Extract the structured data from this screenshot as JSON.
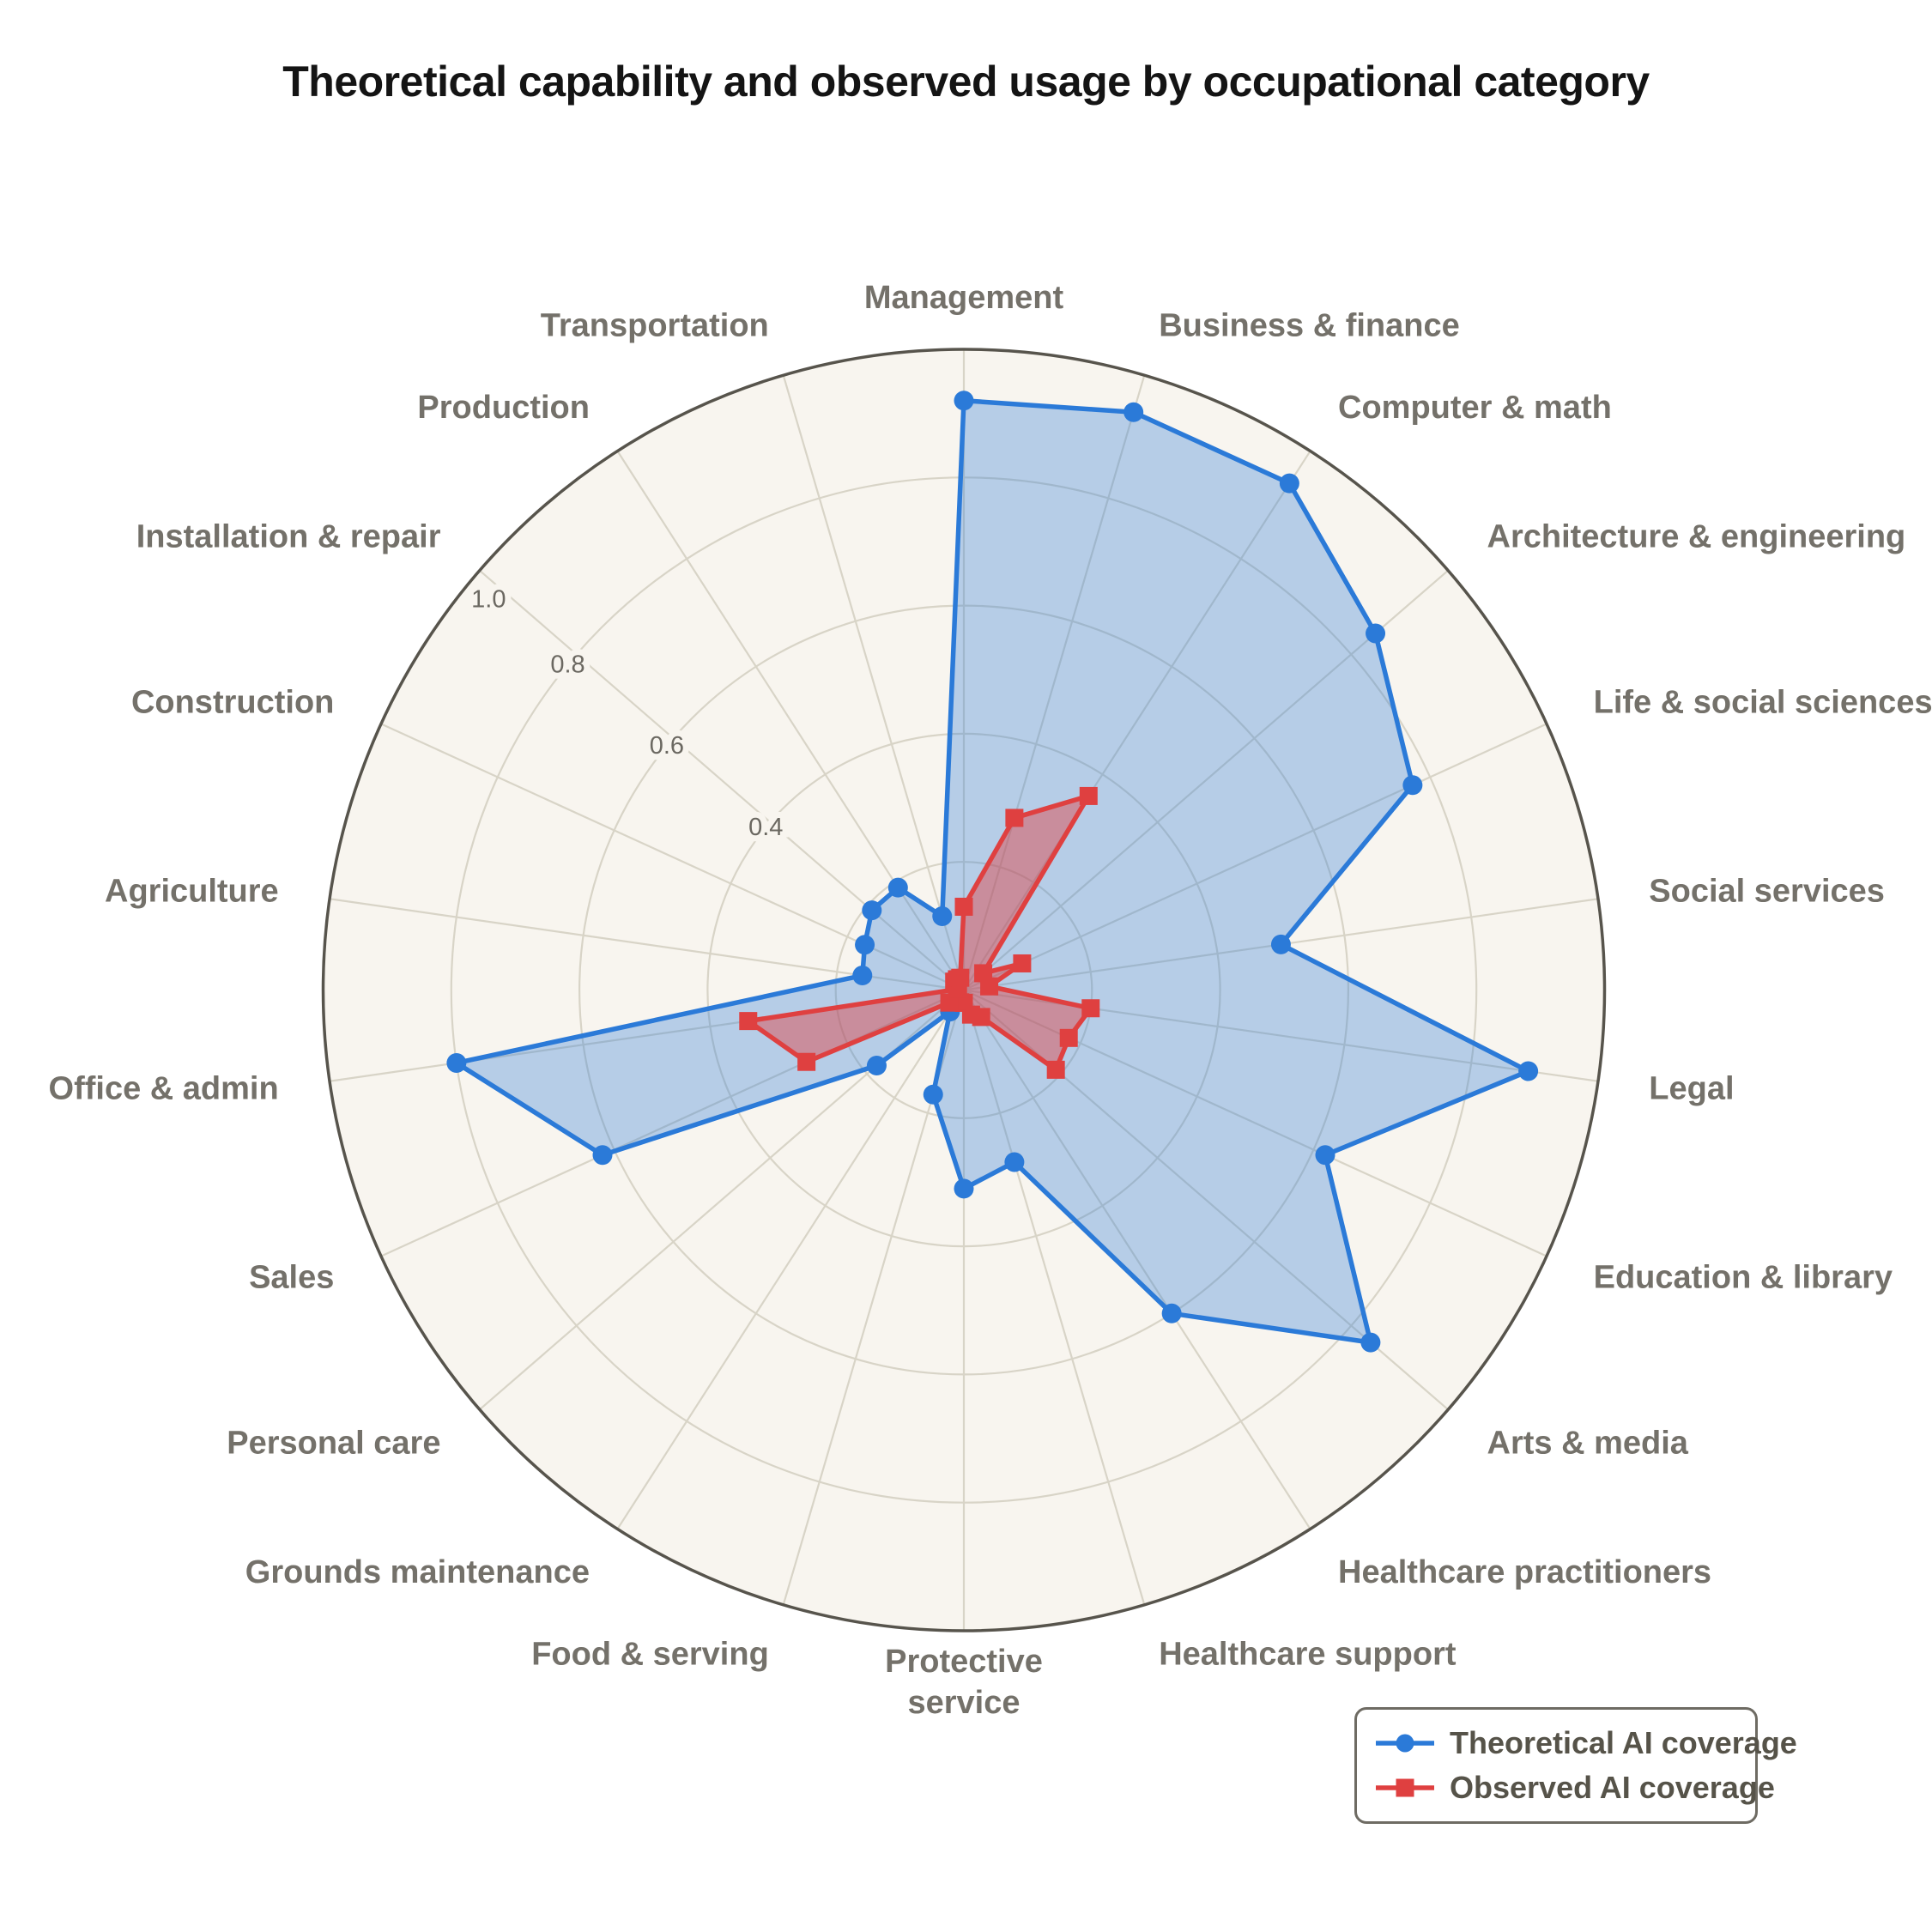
{
  "chart_data": {
    "type": "radar",
    "title": "Theoretical capability and observed usage by occupational category",
    "categories": [
      "Management",
      "Business & finance",
      "Computer & math",
      "Architecture & engineering",
      "Life & social sciences",
      "Social services",
      "Legal",
      "Education & library",
      "Arts & media",
      "Healthcare practitioners",
      "Healthcare support",
      "Protective\nservice",
      "Food & serving",
      "Grounds maintenance",
      "Personal care",
      "Sales",
      "Office & admin",
      "Agriculture",
      "Construction",
      "Installation & repair",
      "Production",
      "Transportation"
    ],
    "series": [
      {
        "name": "Theoretical AI coverage",
        "marker": "circle",
        "color": "#2b7ad8",
        "fill": "rgba(43,122,216,0.32)",
        "values": [
          0.92,
          0.94,
          0.94,
          0.85,
          0.77,
          0.5,
          0.89,
          0.62,
          0.84,
          0.6,
          0.28,
          0.31,
          0.17,
          0.04,
          0.18,
          0.62,
          0.8,
          0.16,
          0.17,
          0.19,
          0.19,
          0.12
        ]
      },
      {
        "name": "Observed AI coverage",
        "marker": "square",
        "color": "#df4040",
        "fill": "rgba(223,64,64,0.45)",
        "values": [
          0.13,
          0.28,
          0.36,
          0.04,
          0.1,
          0.04,
          0.2,
          0.18,
          0.19,
          0.05,
          0.04,
          0.02,
          0.02,
          0.02,
          0.03,
          0.27,
          0.34,
          0.01,
          0.01,
          0.02,
          0.02,
          0.02
        ]
      }
    ],
    "raxis": {
      "min": 0.0,
      "max": 1.0,
      "grid_step": 0.2,
      "tick_values": [
        0.4,
        0.6,
        0.8,
        1.0
      ],
      "tick_labels": [
        "0.4",
        "0.6",
        "0.8",
        "1.0"
      ],
      "tick_ray_angle_deg": 140.6
    },
    "start_angle_deg": 90,
    "direction": "clockwise",
    "grid": true,
    "legend_position": "bottom-right"
  },
  "colors": {
    "plot_bg": "#f8f5ef",
    "grid": "#d8d4c7",
    "outer_ring": "#57544c",
    "category_label": "#74716a",
    "tick_label": "#6b6861",
    "title": "#141414",
    "legend_text": "#565349",
    "legend_border": "#6e6b63"
  }
}
